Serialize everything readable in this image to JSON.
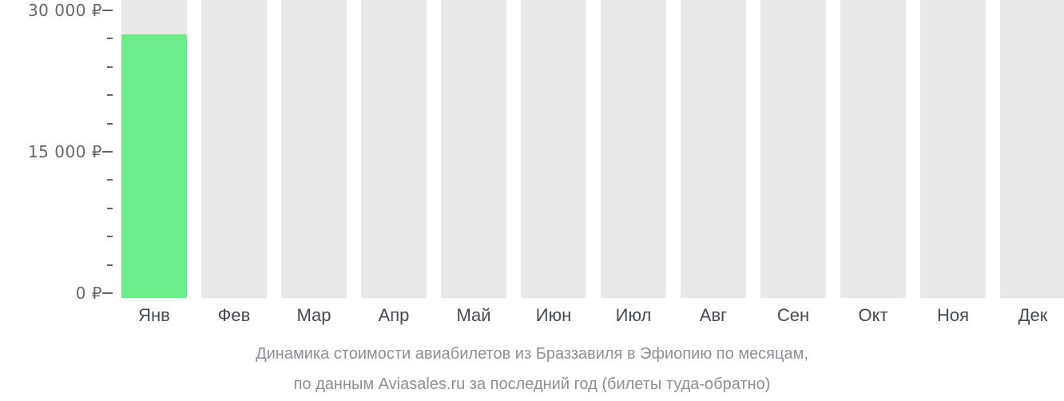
{
  "title": {
    "line1": "Динамика стоимости авиабилетов из Браззавиля в Эфиопию по месяцам,",
    "line2": "по данным Aviasales.ru за последний год (билеты туда-обратно)"
  },
  "chart_data": {
    "type": "bar",
    "title": "Динамика стоимости авиабилетов из Браззавиля в Эфиопию по месяцам, по данным Aviasales.ru за последний год (билеты туда-обратно)",
    "categories": [
      "Янв",
      "Фев",
      "Мар",
      "Апр",
      "Май",
      "Июн",
      "Июл",
      "Авг",
      "Сен",
      "Окт",
      "Ноя",
      "Дек"
    ],
    "values": [
      27400,
      null,
      null,
      null,
      null,
      null,
      null,
      null,
      null,
      null,
      null,
      null
    ],
    "currency": "₽",
    "xlabel": "",
    "ylabel": "",
    "ylim": [
      0,
      30000
    ],
    "y_major_step": 15000,
    "y_minor_step": 3000,
    "y_tick_labels": [
      "30 000 ₽",
      "15 000 ₽",
      "0 ₽"
    ],
    "grid": false,
    "legend_position": "none",
    "no_data_rendering": "full-height gray placeholder bars"
  },
  "colors": {
    "background": "#FFFFFF",
    "bar_green": "#6CEC8A",
    "bar_gray": "#E9E9E9",
    "axis_label": "#62686E",
    "month_label": "#434B53",
    "tick": "#5F656B",
    "title_text": "#8A9095"
  }
}
